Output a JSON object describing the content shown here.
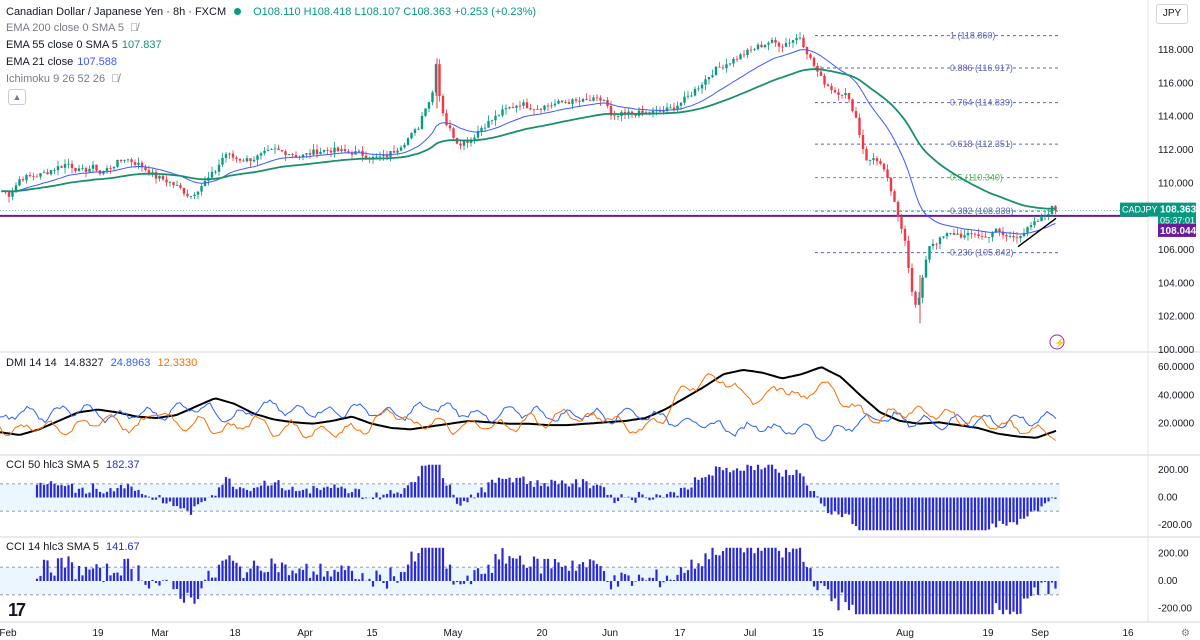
{
  "header": {
    "title": "Canadian Dollar / Japanese Yen · 8h · FXCM",
    "ohlc": "O108.110 H108.418 L108.107 C108.363 +0.253 (+0.23%)",
    "currency_button": "JPY",
    "indicators": [
      {
        "label": "EMA 200 close 0 SMA 5",
        "value": "",
        "hidden": true
      },
      {
        "label": "EMA 55 close 0 SMA 5",
        "value": "107.837",
        "hidden": false,
        "color": "#1a8f6f"
      },
      {
        "label": "EMA 21 close",
        "value": "107.588",
        "hidden": false,
        "color": "#3d5afe"
      },
      {
        "label": "Ichimoku 9 26 52 26",
        "value": "",
        "hidden": true
      }
    ]
  },
  "icons": {
    "eye_hidden": "eye-off-icon",
    "collapse": "chevron-up-icon",
    "lightning": "lightning-icon",
    "settings": "gear-icon",
    "logo": "tradingview-logo"
  },
  "colors": {
    "up": "#089981",
    "down": "#f23645",
    "ema21": "#3d5afe",
    "ema55": "#1a8f6f",
    "fib": "#5b63b8",
    "fib_half": "#4caf50",
    "purple_line": "#6a1b9a",
    "dmi_plus": "#2962ff",
    "dmi_minus": "#ff6d00",
    "adx": "#000000",
    "cci_bar": "#2b2bd6"
  },
  "chart_data": [
    {
      "type": "candlestick",
      "title": "Canadian Dollar / Japanese Yen · 8h · FXCM",
      "symbol": "CADJPY",
      "ylim": [
        100,
        119.5
      ],
      "yticks": [
        "118.000",
        "116.000",
        "114.000",
        "112.000",
        "110.000",
        "108.000",
        "106.000",
        "104.000",
        "102.000",
        "100.000"
      ],
      "x_labels": [
        "Feb",
        "19",
        "Mar",
        "18",
        "Apr",
        "15",
        "May",
        "20",
        "Jun",
        "17",
        "Jul",
        "15",
        "Aug",
        "19",
        "Sep",
        "16"
      ],
      "close_path": {
        "x": [
          0,
          10,
          20,
          40,
          55,
          68,
          80,
          95,
          100,
          125,
          140,
          155,
          165,
          180,
          190,
          202,
          215,
          225,
          235,
          245,
          255,
          265,
          275,
          290,
          300,
          315,
          330,
          345,
          360,
          372,
          385,
          395,
          405,
          418,
          425,
          432,
          436,
          440,
          446,
          452,
          458,
          465,
          472,
          480,
          492,
          505,
          520,
          535,
          550,
          565,
          580,
          595,
          605,
          612,
          620,
          630,
          645,
          660,
          672,
          680,
          690,
          700,
          715,
          730,
          745,
          758,
          770,
          782,
          792,
          800,
          810,
          822,
          835,
          845,
          855,
          862,
          868,
          875,
          882,
          890,
          898,
          905,
          910,
          915,
          918,
          922,
          926,
          930,
          938,
          946,
          955,
          965,
          975,
          985,
          995,
          1005,
          1015,
          1025,
          1035,
          1045,
          1052,
          1056
        ],
        "y": [
          109.6,
          109.3,
          110.3,
          110.5,
          110.9,
          111.2,
          110.7,
          111.0,
          110.6,
          111.5,
          111.1,
          110.4,
          110.2,
          109.7,
          109.2,
          109.9,
          110.7,
          111.8,
          111.5,
          111.4,
          111.5,
          111.8,
          112.0,
          111.8,
          111.6,
          111.9,
          112.0,
          111.9,
          111.8,
          111.5,
          111.6,
          112.0,
          112.5,
          113.3,
          114.6,
          115.2,
          117.3,
          115.0,
          113.6,
          113.0,
          112.4,
          112.5,
          112.7,
          113.3,
          113.8,
          114.4,
          114.8,
          114.5,
          114.7,
          114.9,
          114.9,
          115.0,
          115.0,
          113.8,
          114.1,
          114.2,
          114.2,
          114.3,
          114.5,
          114.8,
          115.3,
          115.9,
          116.8,
          117.3,
          117.8,
          118.2,
          118.5,
          118.3,
          118.6,
          118.8,
          117.5,
          116.2,
          115.5,
          115.4,
          114.2,
          112.3,
          111.2,
          111.6,
          111.0,
          109.8,
          107.9,
          106.7,
          104.3,
          102.6,
          102.8,
          104.0,
          105.5,
          106.4,
          106.5,
          106.9,
          107.0,
          106.8,
          107.0,
          106.7,
          107.2,
          106.8,
          106.8,
          107.1,
          107.6,
          108.1,
          108.5,
          108.4
        ]
      },
      "ema21": {
        "value": 107.588
      },
      "ema55": {
        "value": 107.837
      },
      "fib_levels": [
        {
          "ratio": "1",
          "price": "118.860"
        },
        {
          "ratio": "0.886",
          "price": "116.917"
        },
        {
          "ratio": "0.764",
          "price": "114.839"
        },
        {
          "ratio": "0.618",
          "price": "112.351"
        },
        {
          "ratio": "0.5",
          "price": "110.340"
        },
        {
          "ratio": "0.382",
          "price": "108.330"
        },
        {
          "ratio": "0.236",
          "price": "105.842"
        }
      ],
      "horizontal_line": 108.044,
      "trendline": {
        "from": [
          1018,
          106.2
        ],
        "to": [
          1056,
          107.9
        ]
      },
      "price_labels": [
        {
          "text": "CADJPY",
          "value": "108.363",
          "countdown": "05:37:01"
        },
        {
          "value": "108.044"
        }
      ]
    },
    {
      "type": "line",
      "title": "DMI 14 14",
      "values_text": [
        "14.8327",
        "24.8963",
        "12.3330"
      ],
      "ylim": [
        0,
        65
      ],
      "yticks": [
        "60.0000",
        "40.0000",
        "20.0000"
      ],
      "series": [
        {
          "values": [
            14,
            12,
            16,
            22,
            28,
            30,
            28,
            25,
            24,
            26,
            32,
            38,
            34,
            27,
            23,
            21,
            20,
            22,
            25,
            20,
            17,
            16,
            18,
            20,
            22,
            21,
            20,
            20,
            19,
            19,
            20,
            21,
            22,
            24,
            30,
            38,
            46,
            55,
            58,
            56,
            52,
            55,
            60,
            53,
            40,
            28,
            22,
            20,
            21,
            19,
            17,
            13,
            11,
            10,
            15
          ]
        },
        {
          "values": [
            22,
            30,
            25,
            28,
            31,
            27,
            24,
            28,
            26,
            30,
            33,
            28,
            24,
            30,
            33,
            28,
            30,
            27,
            31,
            29,
            26,
            28,
            33,
            30,
            28,
            24,
            28,
            29,
            26,
            25,
            28,
            24,
            28,
            26,
            24,
            21,
            20,
            17,
            15,
            20,
            14,
            18,
            11,
            15,
            22,
            25,
            23,
            22,
            20,
            22,
            23,
            21,
            22,
            23,
            25
          ]
        },
        {
          "values": [
            18,
            14,
            20,
            16,
            17,
            23,
            22,
            15,
            31,
            19,
            21,
            17,
            16,
            24,
            14,
            18,
            13,
            16,
            15,
            19,
            31,
            18,
            22,
            17,
            18,
            20,
            17,
            23,
            21,
            28,
            22,
            27,
            17,
            17,
            25,
            46,
            50,
            52,
            40,
            36,
            48,
            35,
            50,
            38,
            28,
            22,
            30,
            27,
            28,
            24,
            22,
            19,
            17,
            15,
            12
          ]
        }
      ]
    },
    {
      "type": "bar",
      "title": "CCI 50 hlc3 SMA 5",
      "values_text": [
        "182.37"
      ],
      "ylim": [
        -260,
        260
      ],
      "yticks": [
        "200.00",
        "0.00",
        "-200.00"
      ],
      "bands": [
        100,
        -100
      ]
    },
    {
      "type": "bar",
      "title": "CCI 14 hlc3 SMA 5",
      "values_text": [
        "141.67"
      ],
      "ylim": [
        -260,
        260
      ],
      "yticks": [
        "200.00",
        "0.00",
        "-200.00"
      ],
      "bands": [
        100,
        -100
      ]
    }
  ]
}
